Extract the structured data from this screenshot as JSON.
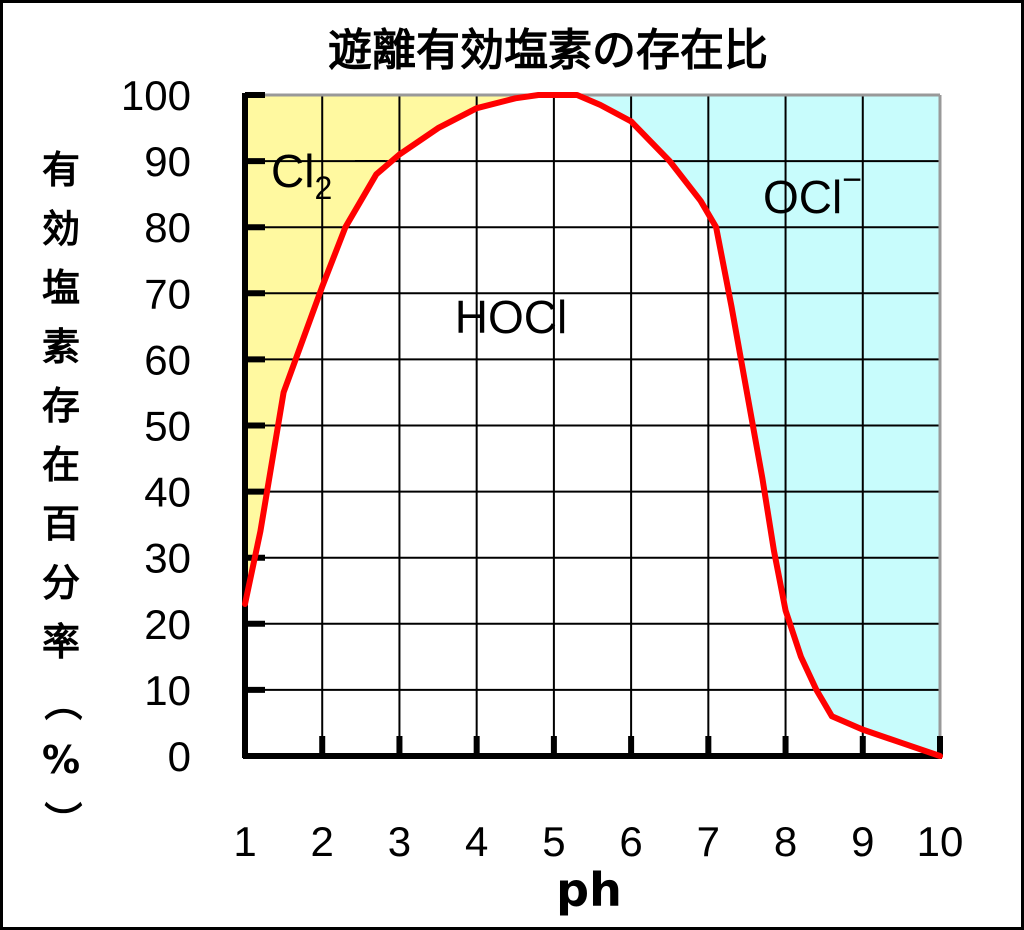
{
  "chart_data": {
    "type": "area",
    "title": "遊離有効塩素の存在比",
    "xlabel": "ph",
    "ylabel": "有効塩素存在百分率（%）",
    "xlim": [
      1,
      10
    ],
    "ylim": [
      0,
      100
    ],
    "x_ticks": [
      "1",
      "2",
      "3",
      "4",
      "5",
      "6",
      "7",
      "8",
      "9",
      "10"
    ],
    "y_ticks": [
      "0",
      "10",
      "20",
      "30",
      "40",
      "50",
      "60",
      "70",
      "80",
      "90",
      "100"
    ],
    "grid": true,
    "series": [
      {
        "name": "HOCl",
        "color": "#ff0000",
        "x": [
          1.0,
          1.2,
          1.5,
          2.0,
          2.3,
          2.7,
          3.0,
          3.5,
          4.0,
          4.5,
          4.8,
          5.0,
          5.3,
          5.6,
          6.0,
          6.5,
          6.9,
          7.1,
          7.3,
          7.5,
          7.7,
          7.85,
          8.0,
          8.2,
          8.4,
          8.6,
          9.0,
          9.5,
          10.0
        ],
        "values": [
          23,
          34,
          55,
          71,
          80,
          88,
          91,
          95,
          98,
          99.5,
          100,
          100,
          100,
          98.5,
          96,
          90,
          84,
          80,
          68,
          55,
          42,
          31,
          22,
          15,
          10,
          6,
          4,
          2,
          0
        ]
      }
    ],
    "regions": [
      {
        "label": "Cl",
        "subscript": "2",
        "color": "#fff9a0"
      },
      {
        "label": "HOCl",
        "color": "#ffffff"
      },
      {
        "label": "OCl",
        "superscript": "−",
        "color": "#c8fcfc"
      }
    ],
    "colors": {
      "grid": "#000000",
      "border": "#999999",
      "curve": "#ff0000"
    }
  }
}
